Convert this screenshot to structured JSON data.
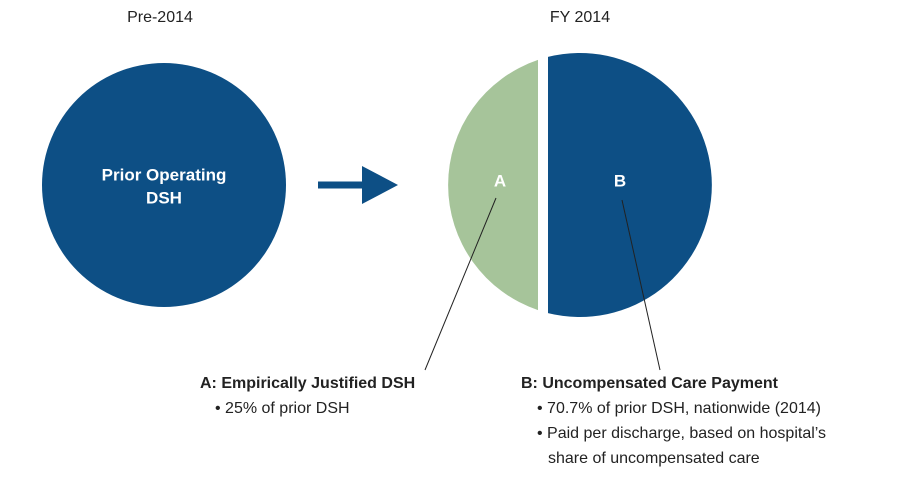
{
  "left": {
    "heading": "Pre-2014",
    "circle_label": [
      "Prior Operating",
      "DSH"
    ]
  },
  "right": {
    "heading": "FY 2014",
    "segments": [
      {
        "letter": "A"
      },
      {
        "letter": "B"
      }
    ]
  },
  "callouts": [
    {
      "title": "A: Empirically Justified DSH",
      "bullets": [
        "• 25% of prior DSH"
      ]
    },
    {
      "title": "B: Uncompensated Care Payment",
      "bullets": [
        "• 70.7% of prior DSH, nationwide (2014)",
        "• Paid per discharge, based on hospital’s",
        "share of uncompensated care"
      ]
    }
  ]
}
